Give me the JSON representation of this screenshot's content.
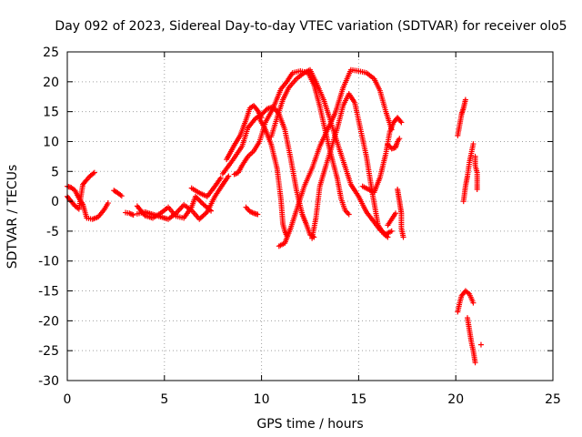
{
  "chart_data": {
    "type": "scatter",
    "title": "Day 092 of 2023, Sidereal Day-to-day VTEC variation (SDTVAR) for receiver olo5",
    "xlabel": "GPS time / hours",
    "ylabel": "SDTVAR / TECUs",
    "xlim": [
      0,
      25
    ],
    "ylim": [
      -30,
      25
    ],
    "xticks": [
      0,
      5,
      10,
      15,
      20,
      25
    ],
    "yticks": [
      -30,
      -25,
      -20,
      -15,
      -10,
      -5,
      0,
      5,
      10,
      15,
      20,
      25
    ],
    "grid": true,
    "marker": "+",
    "series": [
      {
        "name": "SDTVAR",
        "color": "#ff0000",
        "tracks": [
          [
            [
              0.0,
              2.5
            ],
            [
              0.2,
              2.3
            ],
            [
              0.4,
              1.8
            ],
            [
              0.6,
              0.5
            ],
            [
              0.8,
              -0.5
            ],
            [
              1.0,
              -2.8
            ],
            [
              1.3,
              -3.0
            ],
            [
              1.6,
              -2.6
            ],
            [
              1.9,
              -1.4
            ],
            [
              2.1,
              -0.3
            ]
          ],
          [
            [
              0.0,
              0.8
            ],
            [
              0.2,
              0.0
            ],
            [
              0.4,
              -0.8
            ],
            [
              0.6,
              -1.3
            ],
            [
              0.8,
              2.8
            ],
            [
              1.0,
              3.6
            ],
            [
              1.2,
              4.3
            ],
            [
              1.4,
              4.8
            ]
          ],
          [
            [
              2.4,
              1.8
            ],
            [
              2.6,
              1.4
            ],
            [
              2.8,
              0.9
            ]
          ],
          [
            [
              3.0,
              -1.9
            ],
            [
              3.2,
              -2.0
            ],
            [
              3.4,
              -2.3
            ]
          ],
          [
            [
              3.6,
              -2.1
            ],
            [
              4.0,
              -1.8
            ],
            [
              4.4,
              -2.2
            ],
            [
              4.8,
              -2.6
            ],
            [
              5.2,
              -3.0
            ],
            [
              5.6,
              -2.0
            ],
            [
              6.0,
              -0.6
            ],
            [
              6.4,
              -1.5
            ],
            [
              6.8,
              -3.0
            ],
            [
              7.2,
              -1.8
            ],
            [
              7.6,
              0.8
            ],
            [
              8.0,
              2.8
            ],
            [
              8.3,
              4.2
            ]
          ],
          [
            [
              3.6,
              -0.8
            ],
            [
              4.0,
              -2.4
            ],
            [
              4.4,
              -2.8
            ],
            [
              4.8,
              -2.0
            ],
            [
              5.2,
              -1.0
            ],
            [
              5.6,
              -2.5
            ],
            [
              6.0,
              -2.8
            ],
            [
              6.4,
              -1.0
            ],
            [
              6.6,
              0.8
            ],
            [
              7.0,
              -0.5
            ],
            [
              7.4,
              -1.6
            ]
          ],
          [
            [
              6.4,
              2.2
            ],
            [
              6.8,
              1.4
            ],
            [
              7.2,
              0.8
            ],
            [
              7.6,
              2.5
            ],
            [
              7.9,
              3.9
            ]
          ],
          [
            [
              8.2,
              7.0
            ],
            [
              8.6,
              9.4
            ],
            [
              8.9,
              11.0
            ],
            [
              9.2,
              13.6
            ],
            [
              9.4,
              15.6
            ],
            [
              9.6,
              16.0
            ],
            [
              9.8,
              15.2
            ],
            [
              10.0,
              14.0
            ]
          ],
          [
            [
              8.0,
              4.6
            ],
            [
              8.5,
              6.8
            ],
            [
              9.0,
              9.2
            ],
            [
              9.3,
              12.3
            ],
            [
              9.7,
              13.9
            ],
            [
              10.0,
              14.5
            ],
            [
              10.3,
              15.5
            ],
            [
              10.6,
              15.8
            ],
            [
              10.9,
              14.6
            ],
            [
              11.2,
              12.0
            ],
            [
              11.5,
              7.2
            ],
            [
              11.8,
              1.8
            ],
            [
              12.1,
              -2.2
            ],
            [
              12.3,
              -3.8
            ],
            [
              12.5,
              -5.6
            ],
            [
              12.7,
              -6.0
            ]
          ],
          [
            [
              8.6,
              4.5
            ],
            [
              8.8,
              4.8
            ],
            [
              9.0,
              6.0
            ],
            [
              9.3,
              7.5
            ],
            [
              9.6,
              8.4
            ],
            [
              9.9,
              10.0
            ],
            [
              10.2,
              13.2
            ],
            [
              10.6,
              15.6
            ],
            [
              11.0,
              18.8
            ],
            [
              11.3,
              20.0
            ],
            [
              11.6,
              21.5
            ],
            [
              12.0,
              21.8
            ],
            [
              12.4,
              21.5
            ],
            [
              12.7,
              19.5
            ],
            [
              13.0,
              15.9
            ],
            [
              13.3,
              11.5
            ],
            [
              13.6,
              7.5
            ],
            [
              13.9,
              3.8
            ],
            [
              14.1,
              0.4
            ],
            [
              14.3,
              -1.5
            ],
            [
              14.5,
              -2.2
            ]
          ],
          [
            [
              9.2,
              -1.0
            ],
            [
              9.4,
              -1.7
            ],
            [
              9.6,
              -2.0
            ],
            [
              9.8,
              -2.2
            ]
          ],
          [
            [
              9.9,
              13.8
            ],
            [
              10.2,
              12.0
            ],
            [
              10.5,
              9.5
            ],
            [
              10.8,
              5.5
            ],
            [
              11.0,
              0.3
            ],
            [
              11.1,
              -3.8
            ],
            [
              11.2,
              -5.0
            ],
            [
              11.3,
              -5.8
            ]
          ],
          [
            [
              10.5,
              10.8
            ],
            [
              10.8,
              14.0
            ],
            [
              11.1,
              17.0
            ],
            [
              11.4,
              19.0
            ],
            [
              11.8,
              20.5
            ],
            [
              12.2,
              21.5
            ],
            [
              12.5,
              22.0
            ],
            [
              12.8,
              20.0
            ],
            [
              13.2,
              17.0
            ],
            [
              13.5,
              14.0
            ],
            [
              13.8,
              10.8
            ],
            [
              14.2,
              6.8
            ],
            [
              14.6,
              2.8
            ],
            [
              15.0,
              0.8
            ],
            [
              15.4,
              -1.8
            ],
            [
              15.8,
              -3.5
            ],
            [
              16.1,
              -4.8
            ],
            [
              16.4,
              -5.5
            ],
            [
              16.7,
              -5.0
            ]
          ],
          [
            [
              10.9,
              -7.5
            ],
            [
              11.2,
              -7.0
            ],
            [
              11.5,
              -4.5
            ],
            [
              11.8,
              -1.5
            ],
            [
              12.2,
              2.5
            ],
            [
              12.6,
              5.5
            ],
            [
              13.0,
              9.2
            ],
            [
              13.4,
              12.0
            ],
            [
              13.8,
              14.8
            ],
            [
              14.2,
              19.0
            ],
            [
              14.6,
              22.0
            ],
            [
              15.0,
              21.8
            ],
            [
              15.4,
              21.5
            ],
            [
              15.8,
              20.5
            ],
            [
              16.1,
              18.5
            ],
            [
              16.4,
              15.0
            ],
            [
              16.7,
              12.0
            ]
          ],
          [
            [
              12.6,
              -6.2
            ],
            [
              12.8,
              -2.8
            ],
            [
              13.0,
              2.5
            ],
            [
              13.3,
              5.8
            ],
            [
              13.6,
              9.0
            ],
            [
              13.9,
              12.2
            ],
            [
              14.2,
              16.0
            ],
            [
              14.5,
              18.0
            ],
            [
              14.8,
              16.5
            ],
            [
              15.1,
              12.0
            ],
            [
              15.4,
              7.5
            ],
            [
              15.7,
              1.5
            ],
            [
              16.0,
              -4.0
            ],
            [
              16.3,
              -5.5
            ],
            [
              16.5,
              -6.0
            ]
          ],
          [
            [
              15.2,
              2.5
            ],
            [
              15.5,
              2.0
            ],
            [
              15.8,
              1.5
            ],
            [
              16.1,
              4.0
            ],
            [
              16.4,
              8.0
            ],
            [
              16.6,
              11.6
            ],
            [
              16.8,
              13.2
            ],
            [
              17.0,
              14.0
            ],
            [
              17.2,
              13.2
            ]
          ],
          [
            [
              16.5,
              9.5
            ],
            [
              16.7,
              8.8
            ],
            [
              16.9,
              9.0
            ],
            [
              17.0,
              10.0
            ],
            [
              17.1,
              10.5
            ]
          ],
          [
            [
              17.0,
              2.0
            ],
            [
              17.1,
              0.0
            ],
            [
              17.2,
              -2.0
            ],
            [
              17.2,
              -4.5
            ],
            [
              17.3,
              -6.0
            ]
          ],
          [
            [
              16.5,
              -4.0
            ],
            [
              16.7,
              -3.0
            ],
            [
              16.9,
              -2.0
            ]
          ],
          [
            [
              20.1,
              11.0
            ],
            [
              20.2,
              12.8
            ],
            [
              20.3,
              14.6
            ],
            [
              20.4,
              15.6
            ],
            [
              20.5,
              17.0
            ]
          ],
          [
            [
              20.4,
              0.0
            ],
            [
              20.5,
              2.5
            ],
            [
              20.6,
              4.2
            ],
            [
              20.7,
              6.5
            ],
            [
              20.8,
              8.0
            ],
            [
              20.9,
              9.6
            ]
          ],
          [
            [
              21.0,
              7.5
            ],
            [
              21.0,
              6.0
            ],
            [
              21.1,
              4.8
            ],
            [
              21.1,
              3.5
            ],
            [
              21.1,
              2.0
            ]
          ],
          [
            [
              20.1,
              -18.5
            ],
            [
              20.2,
              -17.0
            ],
            [
              20.3,
              -15.8
            ],
            [
              20.5,
              -15.0
            ],
            [
              20.7,
              -15.5
            ],
            [
              20.9,
              -17.0
            ]
          ],
          [
            [
              20.6,
              -19.5
            ],
            [
              20.7,
              -21.5
            ],
            [
              20.8,
              -23.5
            ],
            [
              20.9,
              -25.0
            ],
            [
              21.0,
              -27.0
            ]
          ],
          [
            [
              21.3,
              -24.0
            ]
          ]
        ]
      }
    ]
  }
}
